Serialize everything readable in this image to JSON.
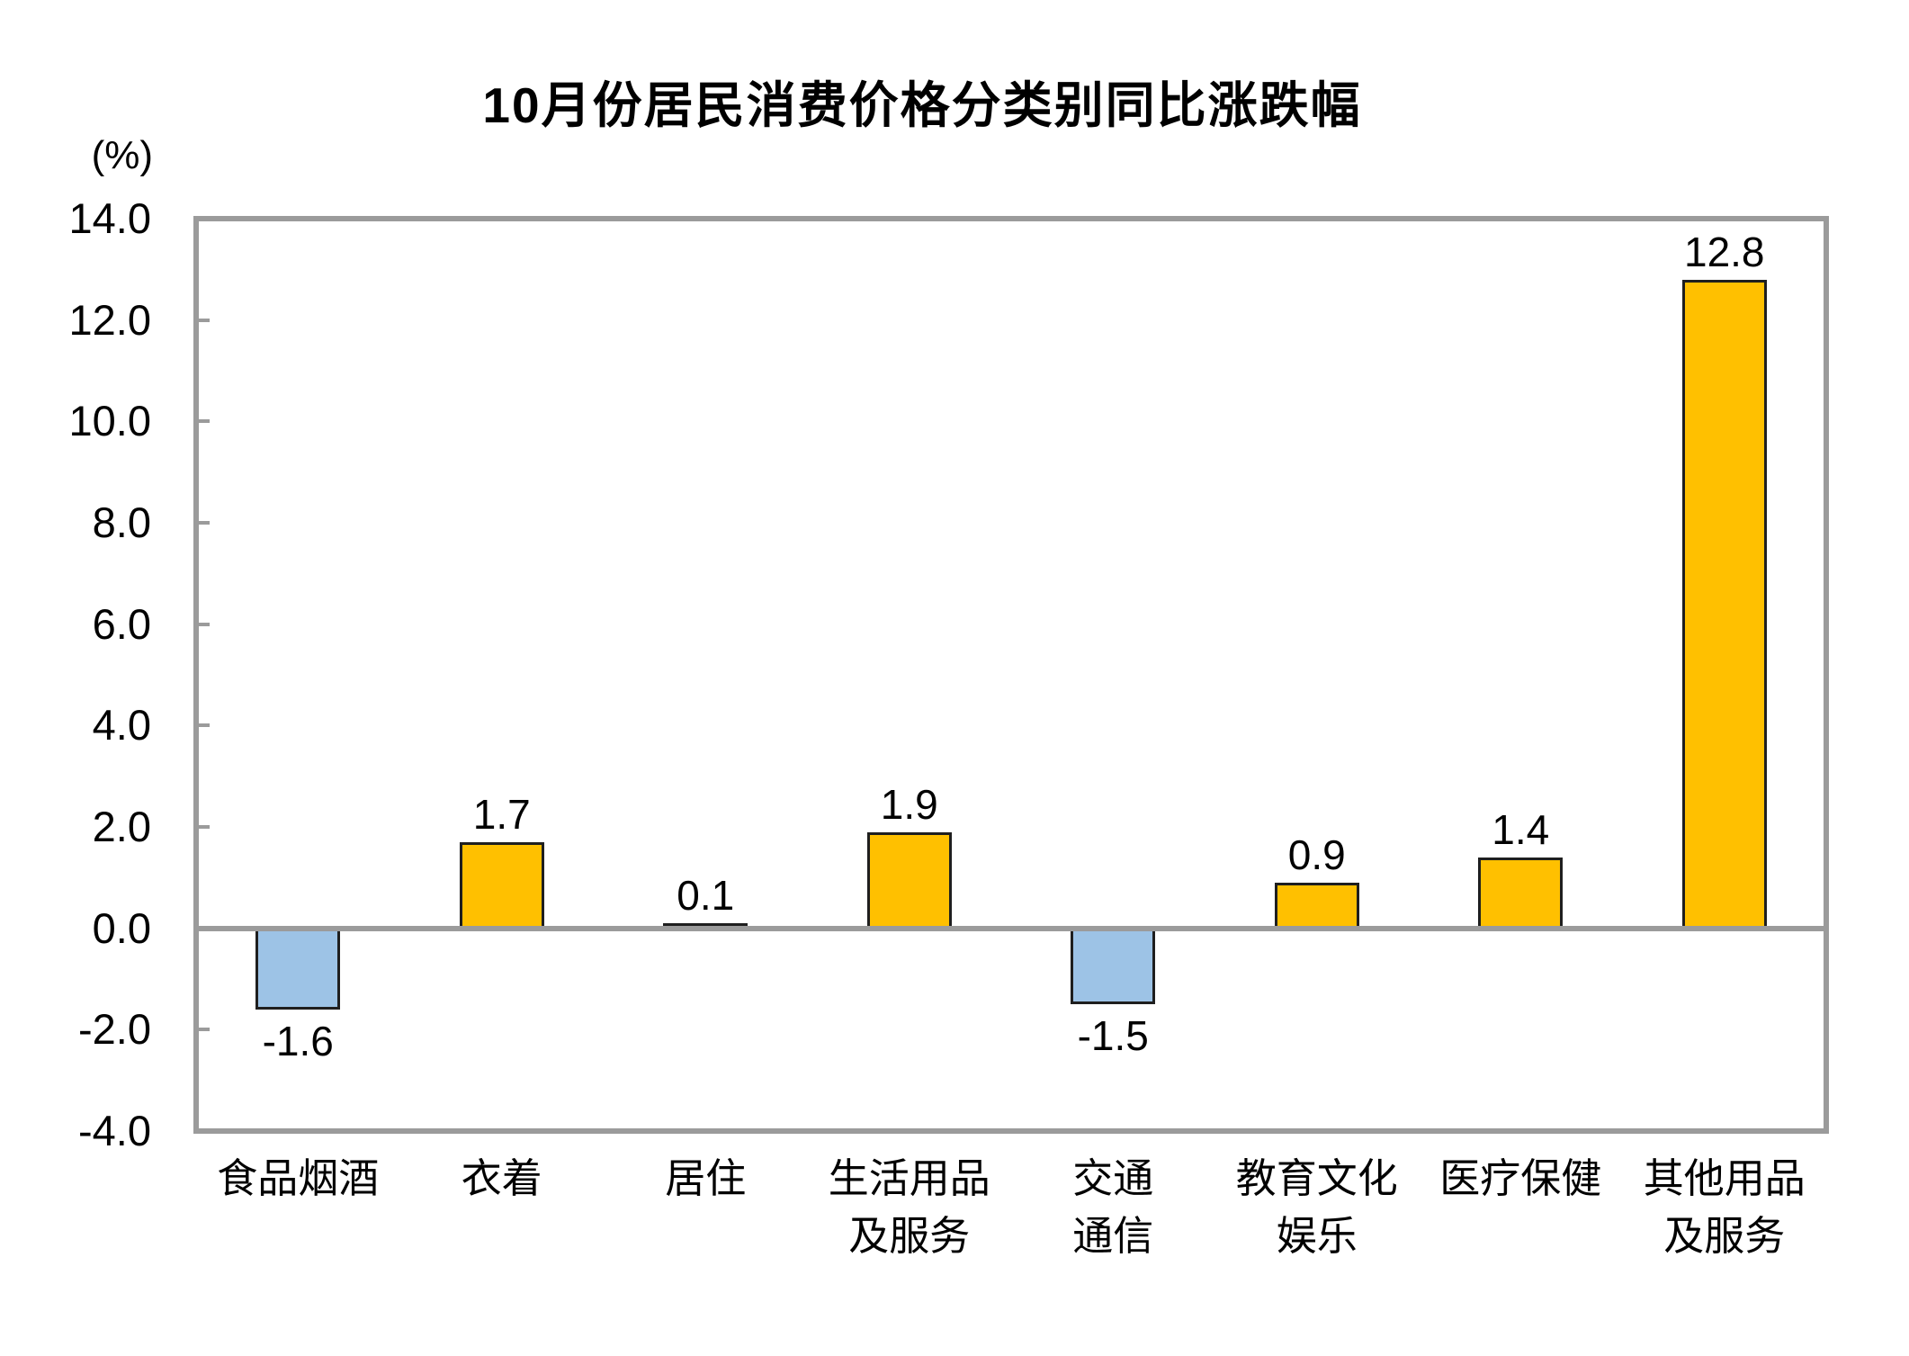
{
  "chart_data": {
    "type": "bar",
    "title": "10月份居民消费价格分类别同比涨跌幅",
    "unit_label": "(%)",
    "categories": [
      "食品烟酒",
      "衣着",
      "居住",
      "生活用品及服务",
      "交通通信",
      "教育文化娱乐",
      "医疗保健",
      "其他用品及服务"
    ],
    "category_label_lines": [
      [
        "食品烟酒"
      ],
      [
        "衣着"
      ],
      [
        "居住"
      ],
      [
        "生活用品",
        "及服务"
      ],
      [
        "交通",
        "通信"
      ],
      [
        "教育文化",
        "娱乐"
      ],
      [
        "医疗保健"
      ],
      [
        "其他用品",
        "及服务"
      ]
    ],
    "values": [
      -1.6,
      1.7,
      0.1,
      1.9,
      -1.5,
      0.9,
      1.4,
      12.8
    ],
    "value_labels": [
      "-1.6",
      "1.7",
      "0.1",
      "1.9",
      "-1.5",
      "0.9",
      "1.4",
      "12.8"
    ],
    "xlabel": "",
    "ylabel": "(%)",
    "ylim": [
      -4.0,
      14.0
    ],
    "ytick_interval": 2.0,
    "ytick_labels": [
      "14.0",
      "12.0",
      "10.0",
      "8.0",
      "6.0",
      "4.0",
      "2.0",
      "0.0",
      "-2.0",
      "-4.0"
    ],
    "grid": false,
    "legend": "none",
    "colors": {
      "positive_bar": "#FFC000",
      "negative_bar": "#9DC3E6",
      "bar_border": "#1F1F1F",
      "axis_frame": "#9B9B9B",
      "zero_line": "#9B9B9B",
      "text": "#000000"
    }
  }
}
